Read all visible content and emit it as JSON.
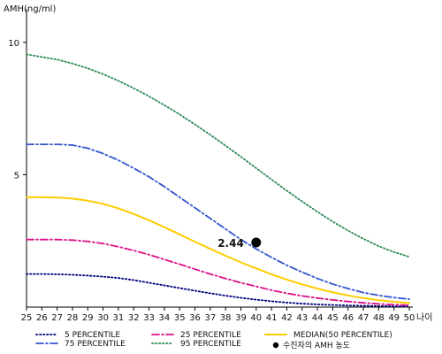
{
  "chart_data": {
    "type": "line",
    "ylabel": "AMH(ng/ml)",
    "xlabel": "나이",
    "x": [
      25,
      26,
      27,
      28,
      29,
      30,
      31,
      32,
      33,
      34,
      35,
      36,
      37,
      38,
      39,
      40,
      41,
      42,
      43,
      44,
      45,
      46,
      47,
      48,
      49,
      50
    ],
    "xlim": [
      25,
      50
    ],
    "ylim": [
      0,
      11
    ],
    "y_ticks": [
      5,
      10
    ],
    "grid": false,
    "legend_position": "bottom",
    "series": [
      {
        "name": "5 PERCENTILE",
        "color": "#000080",
        "line_style": "dotted",
        "values": [
          1.25,
          1.25,
          1.24,
          1.22,
          1.19,
          1.15,
          1.1,
          1.02,
          0.92,
          0.82,
          0.72,
          0.62,
          0.52,
          0.43,
          0.35,
          0.28,
          0.22,
          0.17,
          0.13,
          0.1,
          0.08,
          0.06,
          0.05,
          0.04,
          0.03,
          0.02
        ]
      },
      {
        "name": "75 PERCENTILE",
        "color": "#3355cc",
        "line_style": "dash-dot",
        "values": [
          6.15,
          6.15,
          6.15,
          6.12,
          6.0,
          5.8,
          5.55,
          5.25,
          4.92,
          4.55,
          4.15,
          3.75,
          3.35,
          2.95,
          2.55,
          2.2,
          1.88,
          1.58,
          1.32,
          1.08,
          0.87,
          0.7,
          0.55,
          0.44,
          0.36,
          0.3
        ]
      },
      {
        "name": "25 PERCENTILE",
        "color": "#dd1188",
        "line_style": "dash-dot",
        "values": [
          2.55,
          2.55,
          2.55,
          2.53,
          2.48,
          2.4,
          2.28,
          2.14,
          1.98,
          1.8,
          1.62,
          1.43,
          1.25,
          1.08,
          0.92,
          0.78,
          0.64,
          0.52,
          0.42,
          0.34,
          0.27,
          0.21,
          0.16,
          0.12,
          0.09,
          0.07
        ]
      },
      {
        "name": "95 PERCENTILE",
        "color": "#2e8b57",
        "line_style": "dotted",
        "values": [
          9.55,
          9.45,
          9.35,
          9.2,
          9.02,
          8.8,
          8.55,
          8.27,
          7.96,
          7.63,
          7.28,
          6.9,
          6.51,
          6.1,
          5.68,
          5.25,
          4.82,
          4.4,
          3.99,
          3.6,
          3.23,
          2.89,
          2.58,
          2.3,
          2.08,
          1.9
        ]
      },
      {
        "name": "MEDIAN(50 PERCENTILE)",
        "color": "#ffcc00",
        "line_style": "solid",
        "values": [
          4.15,
          4.15,
          4.14,
          4.1,
          4.02,
          3.9,
          3.73,
          3.52,
          3.28,
          3.02,
          2.75,
          2.47,
          2.2,
          1.94,
          1.69,
          1.46,
          1.24,
          1.04,
          0.86,
          0.7,
          0.56,
          0.44,
          0.34,
          0.26,
          0.2,
          0.15
        ]
      }
    ],
    "point": {
      "name": "수진자의 AMH 농도",
      "x": 40,
      "y": 2.44,
      "label": "2.44",
      "color": "#000000"
    }
  }
}
